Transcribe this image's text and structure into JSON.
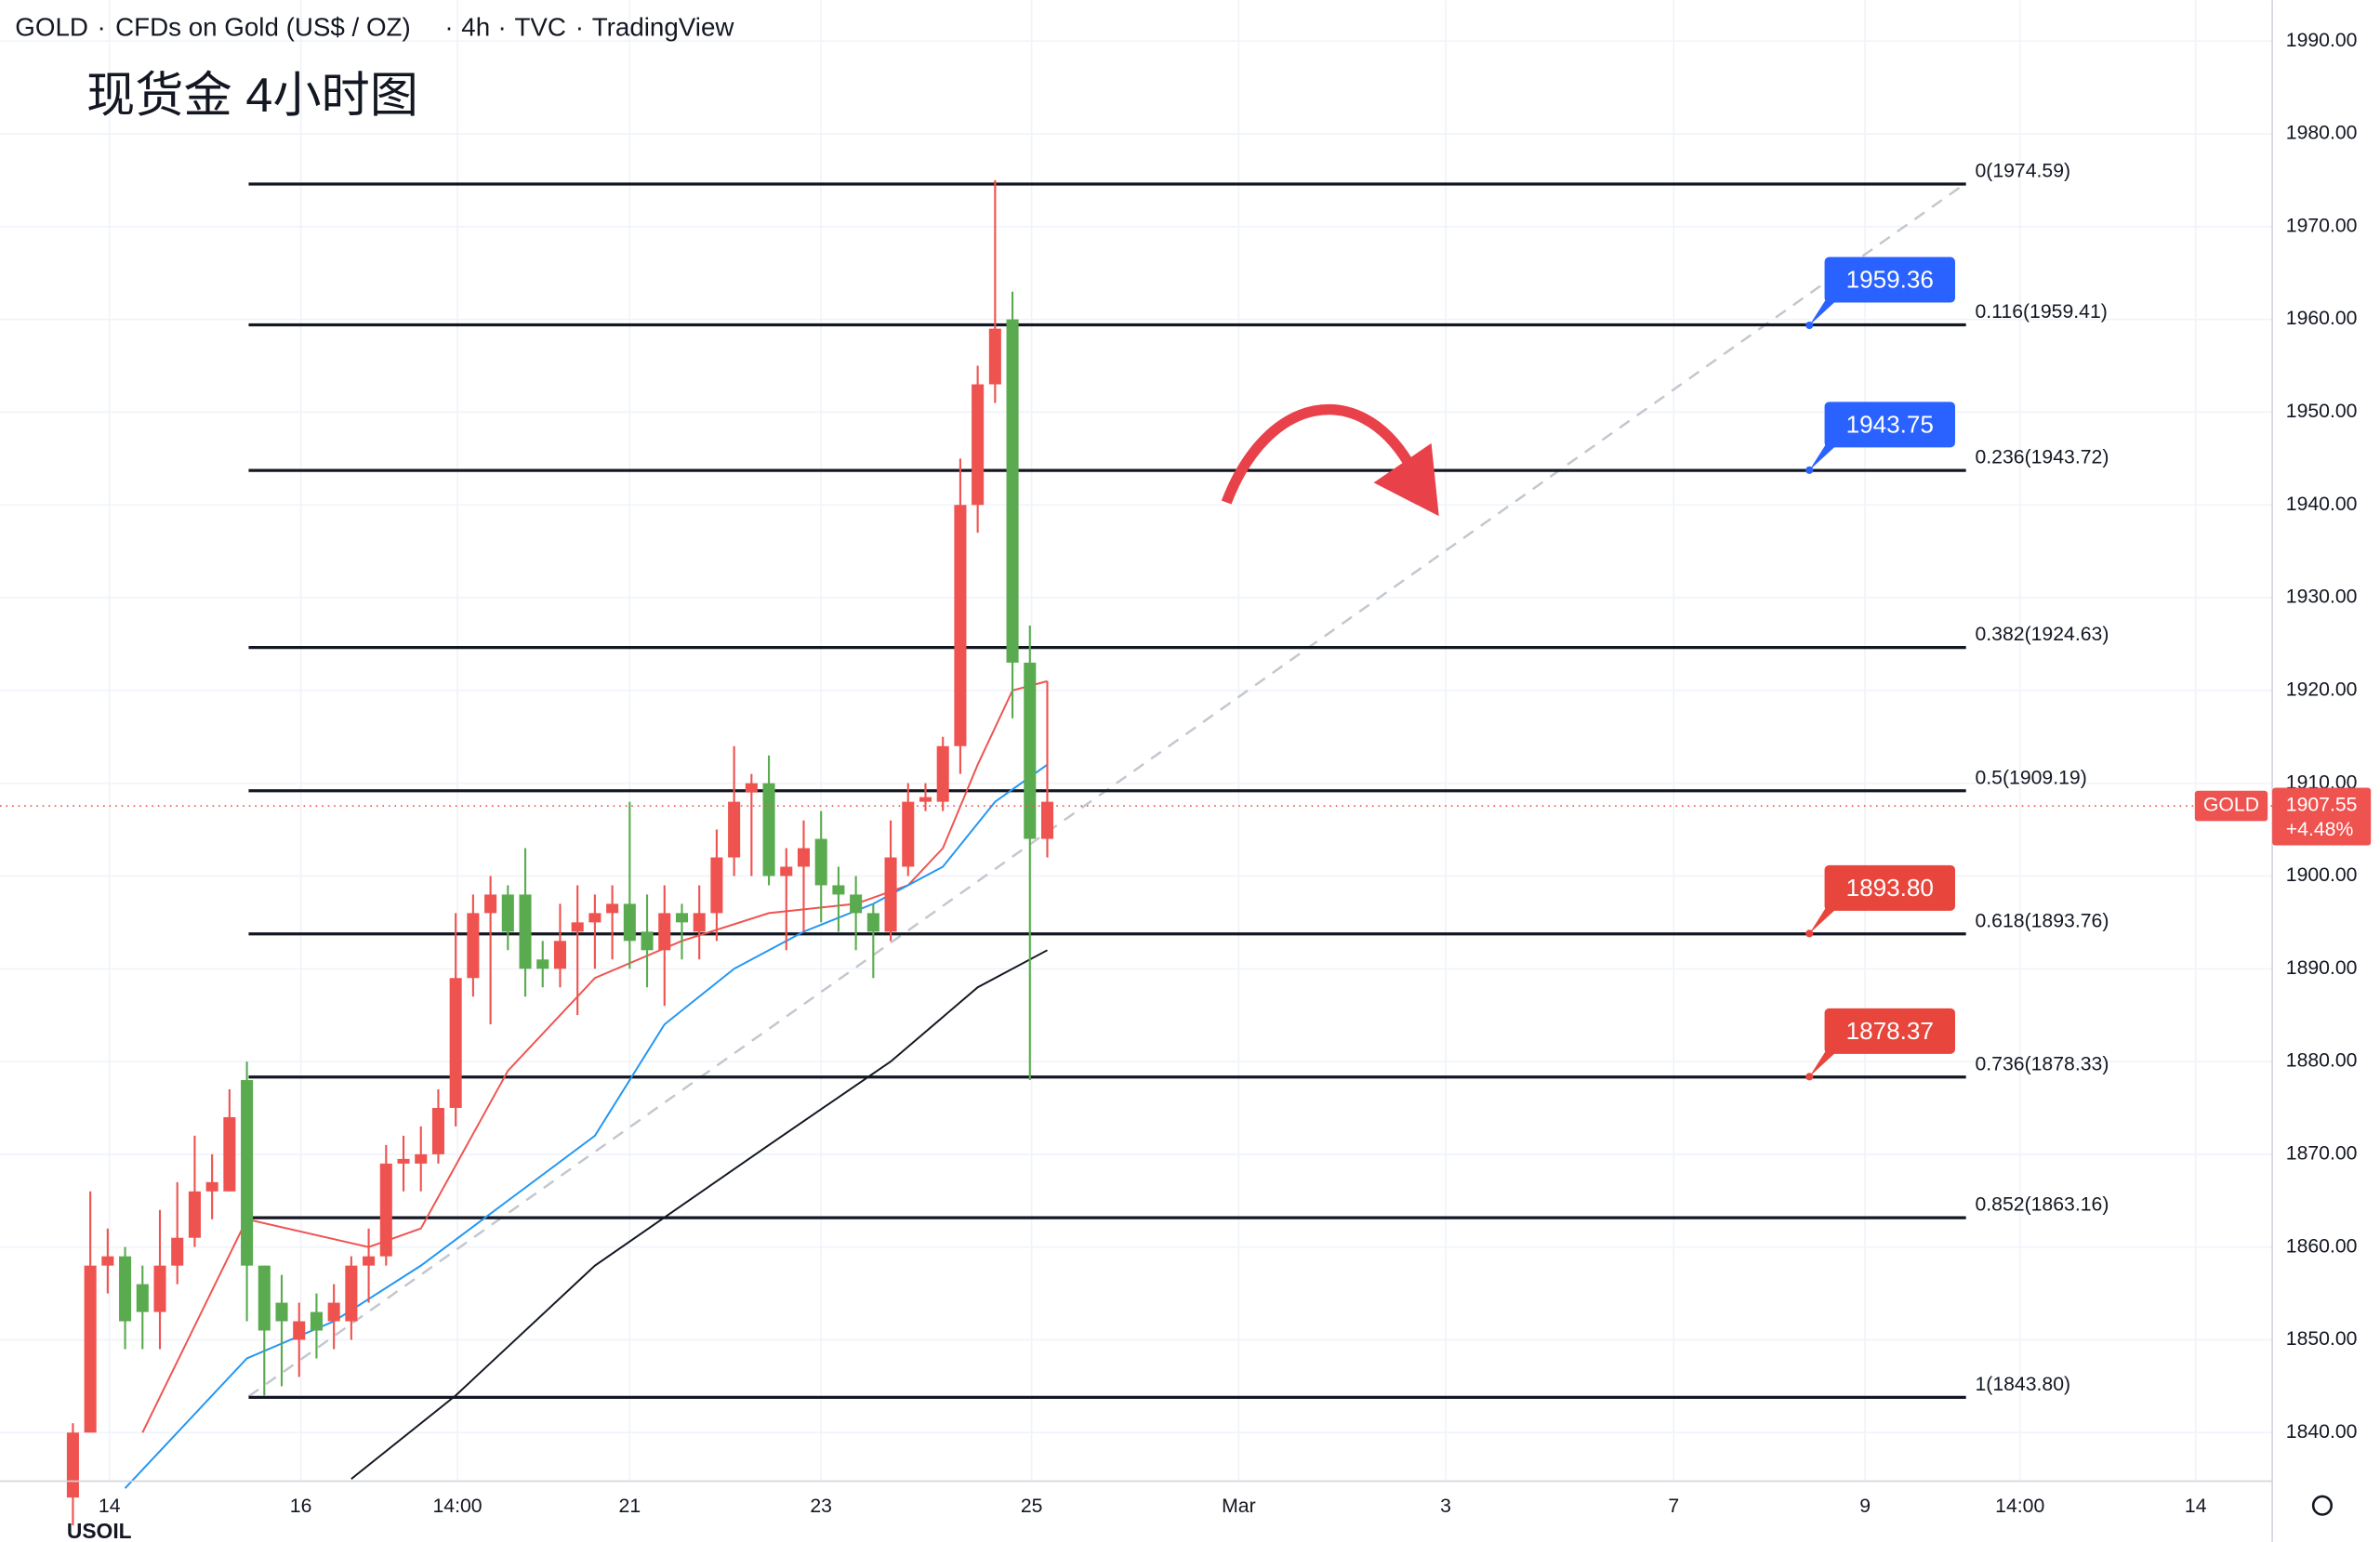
{
  "header": {
    "symbol": "GOLD",
    "name": "CFDs on Gold (US$ / OZ)",
    "interval": "4h",
    "source": "TVC",
    "platform": "TradingView"
  },
  "chart_data": {
    "type": "candlestick",
    "title": "现货金 4小时图",
    "x": [
      0,
      1,
      2,
      3,
      4,
      5,
      6,
      7,
      8,
      9,
      10,
      11,
      12,
      13,
      14,
      15,
      16,
      17,
      18,
      19,
      20,
      21,
      22,
      23,
      24,
      25,
      26,
      27,
      28,
      29,
      30,
      31,
      32,
      33,
      34,
      35,
      36,
      37,
      38,
      39,
      40,
      41,
      42,
      43,
      44,
      45,
      46,
      47,
      48,
      49,
      50,
      51,
      52,
      53,
      54,
      55,
      56
    ],
    "open": [
      1833,
      1840,
      1858,
      1859,
      1856,
      1853,
      1858,
      1861,
      1866,
      1866,
      1878,
      1858,
      1854,
      1850,
      1853,
      1852,
      1852,
      1858,
      1859,
      1869,
      1869,
      1870,
      1875,
      1889,
      1896,
      1898,
      1898,
      1891,
      1890,
      1894,
      1895,
      1896,
      1897,
      1894,
      1892,
      1896,
      1894,
      1896,
      1902,
      1909,
      1910,
      1900,
      1901,
      1904,
      1899,
      1898,
      1896,
      1894,
      1901,
      1908,
      1908,
      1914,
      1940,
      1953,
      1960,
      1923,
      1904
    ],
    "high": [
      1841,
      1866,
      1862,
      1860,
      1858,
      1864,
      1867,
      1872,
      1870,
      1877,
      1880,
      1858,
      1857,
      1854,
      1855,
      1856,
      1859,
      1862,
      1871,
      1872,
      1873,
      1877,
      1896,
      1898,
      1900,
      1899,
      1903,
      1893,
      1897,
      1899,
      1898,
      1899,
      1908,
      1898,
      1899,
      1897,
      1899,
      1905,
      1914,
      1911,
      1913,
      1903,
      1906,
      1907,
      1901,
      1900,
      1897,
      1906,
      1910,
      1910,
      1915,
      1945,
      1955,
      1975,
      1963,
      1927,
      1921
    ],
    "low": [
      1830,
      1840,
      1855,
      1849,
      1849,
      1849,
      1856,
      1860,
      1863,
      1866,
      1852,
      1844,
      1845,
      1846,
      1848,
      1849,
      1850,
      1854,
      1858,
      1866,
      1866,
      1869,
      1873,
      1887,
      1884,
      1892,
      1887,
      1888,
      1888,
      1885,
      1890,
      1891,
      1890,
      1888,
      1886,
      1891,
      1891,
      1893,
      1900,
      1900,
      1899,
      1892,
      1894,
      1895,
      1894,
      1892,
      1889,
      1893,
      1900,
      1907,
      1907,
      1911,
      1937,
      1951,
      1917,
      1878,
      1902
    ],
    "close": [
      1840,
      1858,
      1859,
      1852,
      1853,
      1858,
      1861,
      1866,
      1867,
      1874,
      1858,
      1851,
      1852,
      1852,
      1851,
      1854,
      1858,
      1859,
      1869,
      1869.5,
      1870,
      1875,
      1889,
      1896,
      1898,
      1894,
      1890,
      1890,
      1893,
      1895,
      1896,
      1897,
      1893,
      1892,
      1896,
      1895,
      1896,
      1902,
      1908,
      1910,
      1900,
      1901,
      1903,
      1899,
      1898,
      1896,
      1894,
      1902,
      1908,
      1908.5,
      1914,
      1940,
      1953,
      1959,
      1923,
      1904,
      1908
    ],
    "up_color": "#ef5350",
    "down_color": "#5aab4f",
    "moving_averages": [
      {
        "color": "#ef5350",
        "x": [
          4,
          10,
          17,
          20,
          25,
          30,
          35,
          40,
          45,
          48,
          50,
          52,
          54,
          56
        ],
        "values": [
          1840,
          1863,
          1860,
          1862,
          1879,
          1889,
          1893,
          1896,
          1897,
          1899,
          1903,
          1912,
          1920,
          1921
        ]
      },
      {
        "color": "#2196f3",
        "x": [
          3,
          10,
          15,
          20,
          25,
          30,
          34,
          38,
          42,
          46,
          50,
          53,
          56
        ],
        "values": [
          1834,
          1848,
          1852,
          1858,
          1865,
          1872,
          1884,
          1890,
          1894,
          1897,
          1901,
          1908,
          1912
        ]
      },
      {
        "color": "#131722",
        "x": [
          16,
          22,
          30,
          40,
          47,
          52,
          56
        ],
        "values": [
          1835,
          1844,
          1858,
          1871,
          1880,
          1888,
          1892
        ]
      }
    ],
    "fib_x": [
      10.1,
      108.8
    ],
    "fib_levels": [
      {
        "value": 1974.59,
        "label": "0(1974.59)"
      },
      {
        "value": 1959.41,
        "label": "0.116(1959.41)"
      },
      {
        "value": 1943.72,
        "label": "0.236(1943.72)"
      },
      {
        "value": 1924.63,
        "label": "0.382(1924.63)"
      },
      {
        "value": 1909.19,
        "label": "0.5(1909.19)"
      },
      {
        "value": 1893.76,
        "label": "0.618(1893.76)"
      },
      {
        "value": 1878.33,
        "label": "0.736(1878.33)"
      },
      {
        "value": 1863.16,
        "label": "0.852(1863.16)"
      },
      {
        "value": 1843.8,
        "label": "1(1843.80)"
      }
    ],
    "trend_line": {
      "x": [
        10.1,
        108.8
      ],
      "values": [
        1843.9,
        1974.7
      ]
    },
    "callouts": [
      {
        "value": 1959.36,
        "label": "1959.36",
        "color": "#2962ff"
      },
      {
        "value": 1943.75,
        "label": "1943.75",
        "color": "#2962ff"
      },
      {
        "value": 1893.8,
        "label": "1893.80",
        "color": "#e8453c"
      },
      {
        "value": 1878.37,
        "label": "1878.37",
        "color": "#e8453c"
      }
    ],
    "callout_x": 99.8,
    "last_symbol": "GOLD",
    "last_price": 1907.55,
    "change": "+4.48%",
    "other_symbol": "USOIL",
    "xlim": [
      -4.19,
      126.4
    ],
    "xticks": [
      {
        "value": 2.1,
        "label": "14"
      },
      {
        "value": 13.1,
        "label": "16"
      },
      {
        "value": 22.1,
        "label": "14:00"
      },
      {
        "value": 32.0,
        "label": "21"
      },
      {
        "value": 43.0,
        "label": "23"
      },
      {
        "value": 55.1,
        "label": "25"
      },
      {
        "value": 67.0,
        "label": "Mar"
      },
      {
        "value": 78.9,
        "label": "3"
      },
      {
        "value": 92.0,
        "label": "7"
      },
      {
        "value": 103.0,
        "label": "9"
      },
      {
        "value": 111.9,
        "label": "14:00"
      },
      {
        "value": 122.0,
        "label": "14"
      }
    ],
    "ylim": [
      1834.76,
      1994.42
    ],
    "yticks": [
      {
        "value": 1840,
        "label": "1840.00"
      },
      {
        "value": 1850,
        "label": "1850.00"
      },
      {
        "value": 1860,
        "label": "1860.00"
      },
      {
        "value": 1870,
        "label": "1870.00"
      },
      {
        "value": 1880,
        "label": "1880.00"
      },
      {
        "value": 1890,
        "label": "1890.00"
      },
      {
        "value": 1900,
        "label": "1900.00"
      },
      {
        "value": 1910,
        "label": "1910.00"
      },
      {
        "value": 1920,
        "label": "1920.00"
      },
      {
        "value": 1930,
        "label": "1930.00"
      },
      {
        "value": 1940,
        "label": "1940.00"
      },
      {
        "value": 1950,
        "label": "1950.00"
      },
      {
        "value": 1960,
        "label": "1960.00"
      },
      {
        "value": 1970,
        "label": "1970.00"
      },
      {
        "value": 1980,
        "label": "1980.00"
      },
      {
        "value": 1990,
        "label": "1990.00"
      }
    ],
    "grid": true
  }
}
